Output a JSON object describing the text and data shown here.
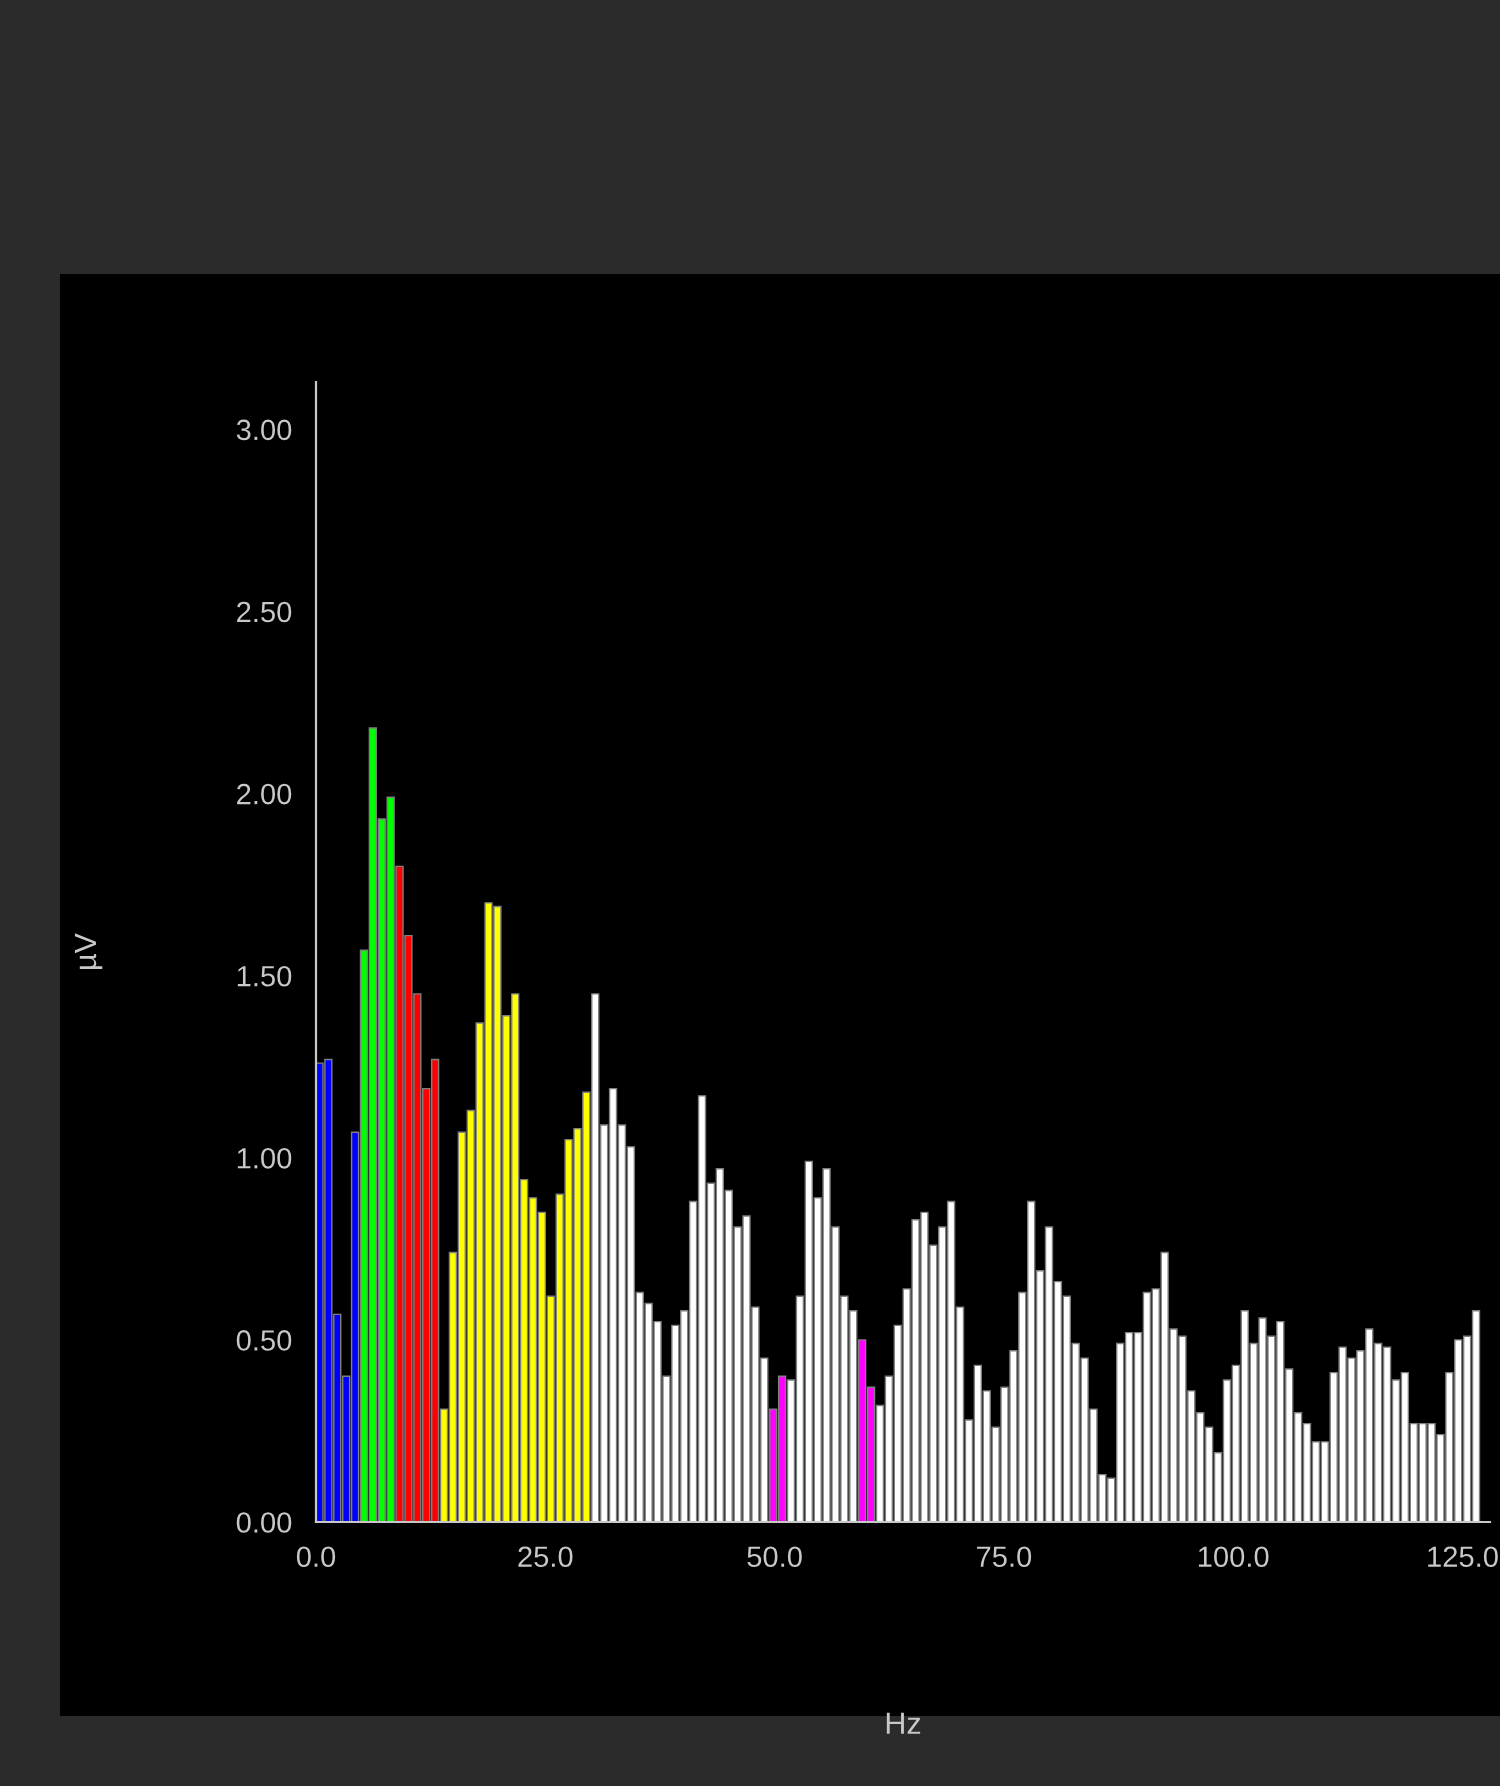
{
  "chart_data": {
    "type": "histogram",
    "xlabel": "Hz",
    "ylabel": "µV",
    "bins": [
      0,
      0.97,
      1.94,
      2.91,
      3.88,
      4.85,
      5.82,
      6.79,
      7.76,
      8.73,
      9.7,
      10.67,
      11.64,
      12.61,
      13.58,
      14.55,
      15.52,
      16.49,
      17.46,
      18.43,
      19.4,
      20.37,
      21.34,
      22.31,
      23.28,
      24.25,
      25.22,
      26.19,
      27.16,
      28.13,
      29.1,
      30.07,
      31.04,
      32.01,
      32.98,
      33.95,
      34.92,
      35.89,
      36.86,
      37.83,
      38.8,
      39.77,
      40.74,
      41.71,
      42.68,
      43.65,
      44.62,
      45.59,
      46.56,
      47.53,
      48.5,
      49.47,
      50.44,
      51.41,
      52.38,
      53.35,
      54.32,
      55.29,
      56.26,
      57.23,
      58.2,
      59.17,
      60.14,
      61.11,
      62.08,
      63.05,
      64.02,
      64.99,
      65.96,
      66.93,
      67.9,
      68.87,
      69.84,
      70.81,
      71.78,
      72.75,
      73.72,
      74.69,
      75.66,
      76.63,
      77.6,
      78.57,
      79.54,
      80.51,
      81.48,
      82.45,
      83.42,
      84.39,
      85.36,
      86.33,
      87.3,
      88.27,
      89.24,
      90.21,
      91.18,
      92.15,
      93.12,
      94.09,
      95.06,
      96.03,
      97,
      97.97,
      98.94,
      99.91,
      100.88,
      101.85,
      102.82,
      103.79,
      104.76,
      105.73,
      106.7,
      107.67,
      108.64,
      109.61,
      110.58,
      111.55,
      112.52,
      113.49,
      114.46,
      115.43,
      116.4,
      117.37,
      118.34,
      119.31,
      120.28,
      121.25,
      122.22,
      123.19,
      124.16,
      125.13,
      126.1,
      127.07
    ],
    "values": [
      1.26,
      1.27,
      0.57,
      0.4,
      1.07,
      1.57,
      2.18,
      1.93,
      1.99,
      1.8,
      1.61,
      1.45,
      1.19,
      1.27,
      0.31,
      0.74,
      1.07,
      1.13,
      1.37,
      1.7,
      1.69,
      1.39,
      1.45,
      0.94,
      0.89,
      0.85,
      0.62,
      0.9,
      1.05,
      1.08,
      1.18,
      1.45,
      1.09,
      1.19,
      1.09,
      1.03,
      0.63,
      0.6,
      0.55,
      0.4,
      0.54,
      0.58,
      0.88,
      1.17,
      0.93,
      0.97,
      0.91,
      0.81,
      0.84,
      0.59,
      0.45,
      0.31,
      0.4,
      0.39,
      0.62,
      0.99,
      0.89,
      0.97,
      0.81,
      0.62,
      0.58,
      0.5,
      0.37,
      0.32,
      0.4,
      0.54,
      0.64,
      0.83,
      0.85,
      0.76,
      0.81,
      0.88,
      0.59,
      0.28,
      0.43,
      0.36,
      0.26,
      0.37,
      0.47,
      0.63,
      0.88,
      0.69,
      0.81,
      0.66,
      0.62,
      0.49,
      0.45,
      0.31,
      0.13,
      0.12,
      0.49,
      0.52,
      0.52,
      0.63,
      0.64,
      0.74,
      0.53,
      0.51,
      0.36,
      0.3,
      0.26,
      0.19,
      0.39,
      0.43,
      0.58,
      0.49,
      0.56,
      0.51,
      0.55,
      0.42,
      0.3,
      0.27,
      0.22,
      0.22,
      0.41,
      0.48,
      0.45,
      0.47,
      0.53,
      0.49,
      0.48,
      0.39,
      0.41,
      0.27,
      0.27,
      0.27,
      0.24,
      0.41,
      0.5,
      0.51,
      0.58
    ],
    "colors": [
      "#0000ff",
      "#0000ff",
      "#0000ff",
      "#0000ff",
      "#0000ff",
      "#00ff00",
      "#00ff00",
      "#00ff00",
      "#00ff00",
      "#ff0000",
      "#ff0000",
      "#ff0000",
      "#ff0000",
      "#ff0000",
      "#ffff00",
      "#ffff00",
      "#ffff00",
      "#ffff00",
      "#ffff00",
      "#ffff00",
      "#ffff00",
      "#ffff00",
      "#ffff00",
      "#ffff00",
      "#ffff00",
      "#ffff00",
      "#ffff00",
      "#ffff00",
      "#ffff00",
      "#ffff00",
      "#ffff00",
      "#ffffff",
      "#ffffff",
      "#ffffff",
      "#ffffff",
      "#ffffff",
      "#ffffff",
      "#ffffff",
      "#ffffff",
      "#ffffff",
      "#ffffff",
      "#ffffff",
      "#ffffff",
      "#ffffff",
      "#ffffff",
      "#ffffff",
      "#ffffff",
      "#ffffff",
      "#ffffff",
      "#ffffff",
      "#ffffff",
      "#ff00ff",
      "#ff00ff",
      "#ffffff",
      "#ffffff",
      "#ffffff",
      "#ffffff",
      "#ffffff",
      "#ffffff",
      "#ffffff",
      "#ffffff",
      "#ff00ff",
      "#ff00ff",
      "#ffffff",
      "#ffffff",
      "#ffffff",
      "#ffffff",
      "#ffffff",
      "#ffffff",
      "#ffffff",
      "#ffffff",
      "#ffffff",
      "#ffffff",
      "#ffffff",
      "#ffffff",
      "#ffffff",
      "#ffffff",
      "#ffffff",
      "#ffffff",
      "#ffffff",
      "#ffffff",
      "#ffffff",
      "#ffffff",
      "#ffffff",
      "#ffffff",
      "#ffffff",
      "#ffffff",
      "#ffffff",
      "#ffffff",
      "#ffffff",
      "#ffffff",
      "#ffffff",
      "#ffffff",
      "#ffffff",
      "#ffffff",
      "#ffffff",
      "#ffffff",
      "#ffffff",
      "#ffffff",
      "#ffffff",
      "#ffffff",
      "#ffffff",
      "#ffffff",
      "#ffffff",
      "#ffffff",
      "#ffffff",
      "#ffffff",
      "#ffffff",
      "#ffffff",
      "#ffffff",
      "#ffffff",
      "#ffffff",
      "#ffffff",
      "#ffffff",
      "#ffffff",
      "#ffffff",
      "#ffffff",
      "#ffffff",
      "#ffffff",
      "#ffffff",
      "#ffffff",
      "#ffffff",
      "#ffffff",
      "#ffffff",
      "#ffffff",
      "#ffffff",
      "#ffffff",
      "#ffffff",
      "#ffffff",
      "#ffffff",
      "#ffffff"
    ],
    "xlim": [
      0,
      128
    ],
    "ylim": [
      0,
      3.13
    ],
    "xticks": [
      {
        "value": 0,
        "label": "0.0"
      },
      {
        "value": 25,
        "label": "25.0"
      },
      {
        "value": 50,
        "label": "50.0"
      },
      {
        "value": 75,
        "label": "75.0"
      },
      {
        "value": 100,
        "label": "100.0"
      },
      {
        "value": 125,
        "label": "125.0"
      }
    ],
    "yticks": [
      {
        "value": 0,
        "label": "0.00"
      },
      {
        "value": 0.5,
        "label": "0.50"
      },
      {
        "value": 1,
        "label": "1.00"
      },
      {
        "value": 1.5,
        "label": "1.50"
      },
      {
        "value": 2,
        "label": "2.00"
      },
      {
        "value": 2.5,
        "label": "2.50"
      },
      {
        "value": 3,
        "label": "3.00"
      }
    ],
    "grid": false,
    "legend": false
  }
}
